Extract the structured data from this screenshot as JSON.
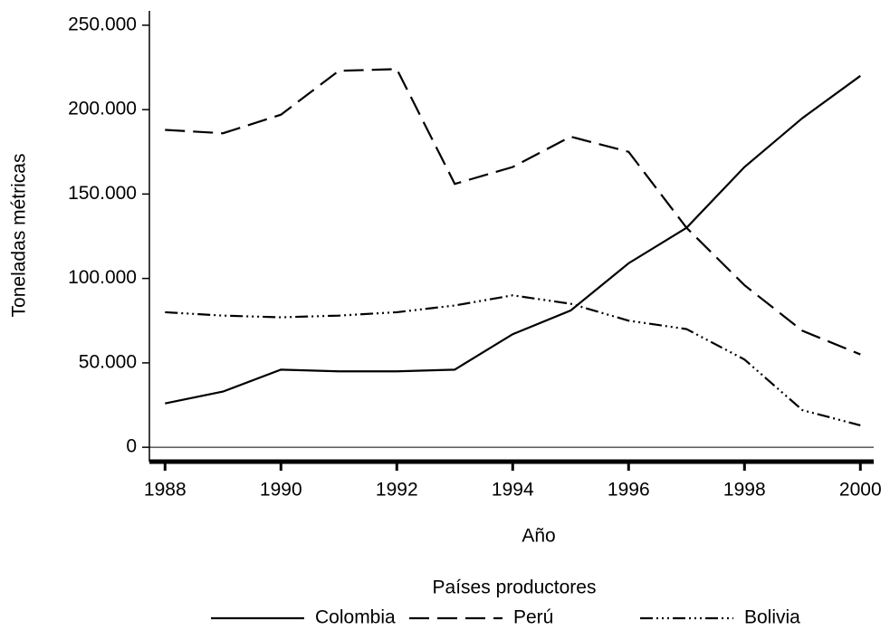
{
  "chart_data": {
    "type": "line",
    "x_label": "Año",
    "y_label": "Toneladas métricas",
    "legend_title": "Países productores",
    "legend_position": "bottom",
    "x": [
      1988,
      1989,
      1990,
      1991,
      1992,
      1993,
      1994,
      1995,
      1996,
      1997,
      1998,
      1999,
      2000
    ],
    "xlim": [
      1987.73,
      2000.23
    ],
    "xticks": [
      1988,
      1990,
      1992,
      1994,
      1996,
      1998,
      2000
    ],
    "ylim": [
      -8500,
      258500
    ],
    "yticks": [
      0,
      {
        "value": 50000,
        "label": "50.000"
      },
      {
        "value": 100000,
        "label": "100.000"
      },
      {
        "value": 150000,
        "label": "150.000"
      },
      {
        "value": 200000,
        "label": "200.000"
      },
      {
        "value": 250000,
        "label": "250.000"
      }
    ],
    "zero_line": true,
    "series": [
      {
        "name": "Colombia",
        "color": "#000000",
        "dash": "solid",
        "values": [
          26000,
          33000,
          46000,
          45000,
          45000,
          46000,
          67000,
          81000,
          109000,
          130000,
          166000,
          195000,
          220000
        ]
      },
      {
        "name": "Perú",
        "color": "#000000",
        "dash": "dashed",
        "values": [
          188000,
          186000,
          197000,
          223000,
          224000,
          156000,
          166000,
          184000,
          175000,
          130000,
          96000,
          69000,
          55000
        ]
      },
      {
        "name": "Bolivia",
        "color": "#000000",
        "dash": "dashdot",
        "values": [
          80000,
          78000,
          77000,
          78000,
          80000,
          84000,
          90000,
          85000,
          75000,
          70000,
          52000,
          22000,
          13000
        ]
      }
    ]
  }
}
